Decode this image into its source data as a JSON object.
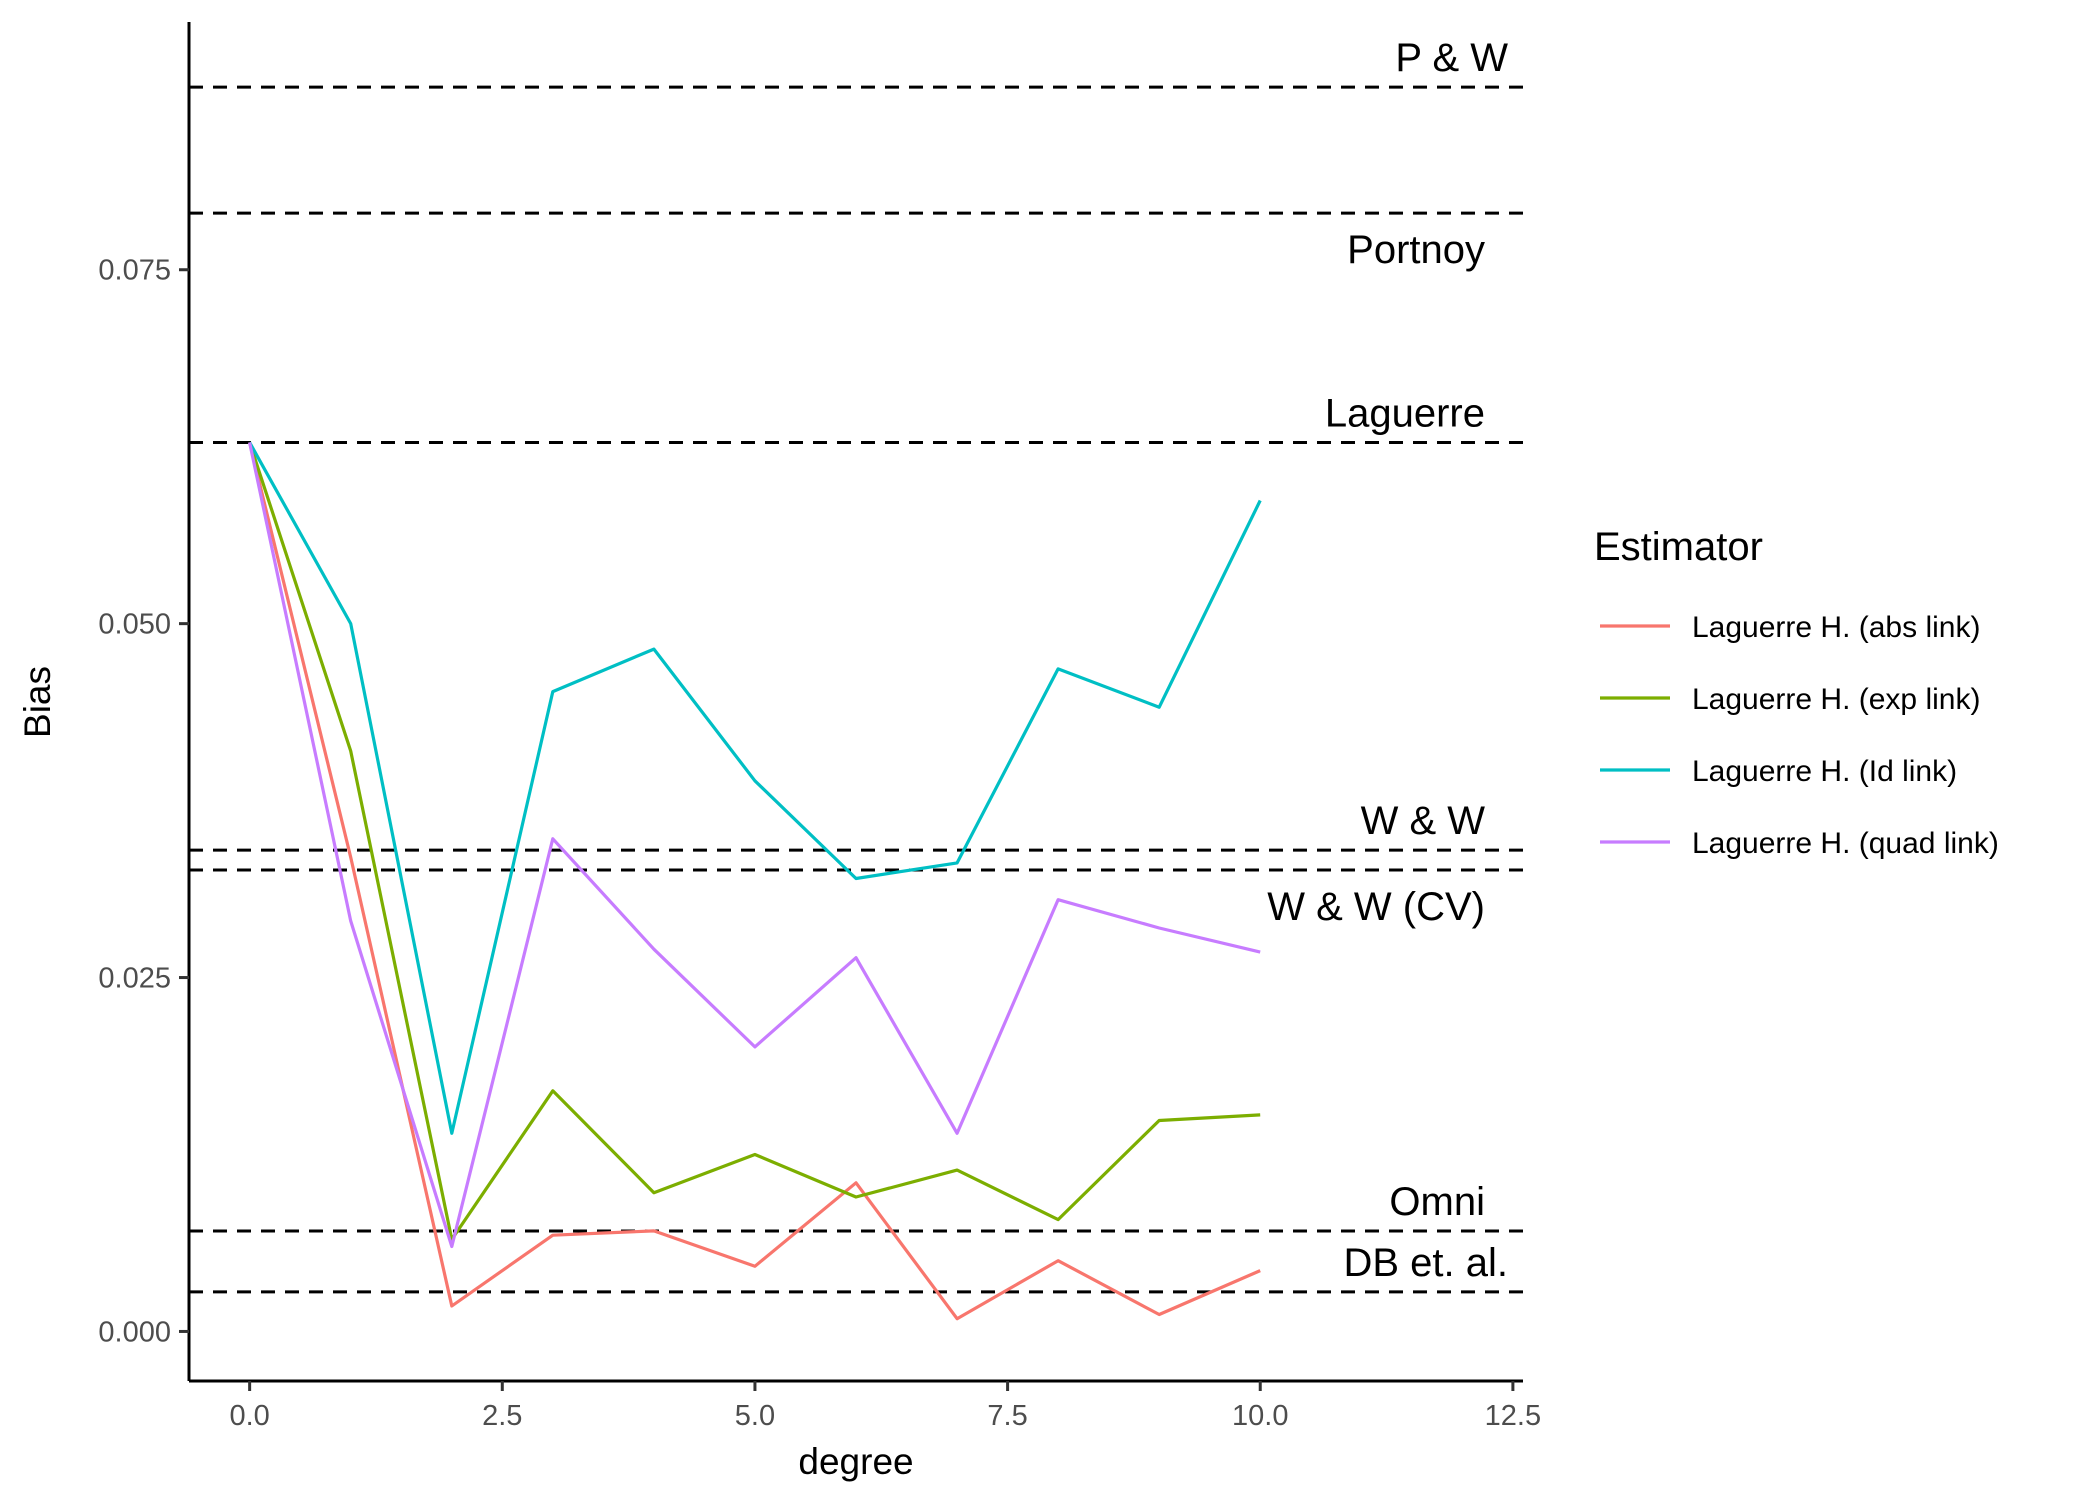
{
  "chart_data": {
    "type": "line",
    "xlabel": "degree",
    "ylabel": "Bias",
    "xlim": [
      -0.6,
      12.6
    ],
    "ylim": [
      -0.0035,
      0.0925
    ],
    "x_ticks": [
      0.0,
      2.5,
      5.0,
      7.5,
      10.0,
      12.5
    ],
    "x_tick_labels": [
      "0.0",
      "2.5",
      "5.0",
      "7.5",
      "10.0",
      "12.5"
    ],
    "y_ticks": [
      0.0,
      0.025,
      0.05,
      0.075
    ],
    "y_tick_labels": [
      "0.000",
      "0.025",
      "0.050",
      "0.075"
    ],
    "grid": false,
    "legend_placement": "right",
    "legend_title": "Estimator",
    "x": [
      0,
      1,
      2,
      3,
      4,
      5,
      6,
      7,
      8,
      9,
      10
    ],
    "series": [
      {
        "name": "Laguerre H. (abs link)",
        "color": "#F8766D",
        "values": [
          0.0628,
          0.0335,
          0.0018,
          0.0068,
          0.0071,
          0.0046,
          0.0105,
          0.0009,
          0.005,
          0.0012,
          0.0043
        ]
      },
      {
        "name": "Laguerre H. (exp link)",
        "color": "#7CAE00",
        "values": [
          0.0628,
          0.041,
          0.0065,
          0.017,
          0.0098,
          0.0125,
          0.0095,
          0.0114,
          0.0079,
          0.0149,
          0.0153
        ]
      },
      {
        "name": "Laguerre H. (Id link)",
        "color": "#00BFC4",
        "values": [
          0.0628,
          0.05,
          0.014,
          0.0452,
          0.0482,
          0.0389,
          0.032,
          0.0331,
          0.0468,
          0.0441,
          0.0587
        ]
      },
      {
        "name": "Laguerre H. (quad link)",
        "color": "#C77CFF",
        "values": [
          0.0628,
          0.029,
          0.006,
          0.0348,
          0.027,
          0.0201,
          0.0264,
          0.014,
          0.0305,
          0.0285,
          0.0268
        ]
      }
    ],
    "reference_lines": [
      {
        "label": "P & W",
        "y": 0.0879
      },
      {
        "label": "Portnoy",
        "y": 0.079
      },
      {
        "label": "Laguerre",
        "y": 0.0628
      },
      {
        "label": "W & W",
        "y": 0.034
      },
      {
        "label": "W & W (CV)",
        "y": 0.0326
      },
      {
        "label": "Omni",
        "y": 0.0071
      },
      {
        "label": "DB et. al.",
        "y": 0.0028
      }
    ]
  }
}
